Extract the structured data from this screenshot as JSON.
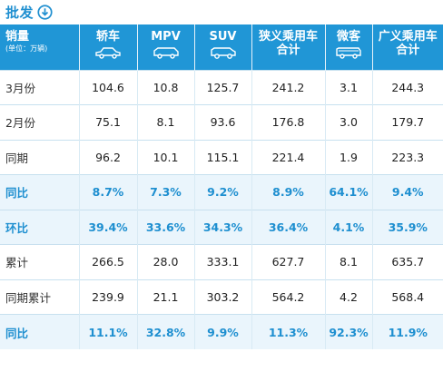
{
  "header": {
    "title": "批发"
  },
  "table": {
    "columns": [
      {
        "label": "销量",
        "unit": "(单位：万辆)"
      },
      {
        "label": "轿车",
        "icon": "sedan-icon"
      },
      {
        "label": "MPV",
        "icon": "mpv-icon"
      },
      {
        "label": "SUV",
        "icon": "suv-icon"
      },
      {
        "label": "狭义乘用车",
        "label2": "合计"
      },
      {
        "label": "微客",
        "icon": "minivan-icon"
      },
      {
        "label": "广义乘用车",
        "label2": "合计"
      }
    ],
    "rows": [
      {
        "label": "3月份",
        "values": [
          "104.6",
          "10.8",
          "125.7",
          "241.2",
          "3.1",
          "244.3"
        ]
      },
      {
        "label": "2月份",
        "values": [
          "75.1",
          "8.1",
          "93.6",
          "176.8",
          "3.0",
          "179.7"
        ]
      },
      {
        "label": "同期",
        "values": [
          "96.2",
          "10.1",
          "115.1",
          "221.4",
          "1.9",
          "223.3"
        ]
      },
      {
        "label": "同比",
        "values": [
          "8.7%",
          "7.3%",
          "9.2%",
          "8.9%",
          "64.1%",
          "9.4%"
        ]
      },
      {
        "label": "环比",
        "values": [
          "39.4%",
          "33.6%",
          "34.3%",
          "36.4%",
          "4.1%",
          "35.9%"
        ]
      },
      {
        "label": "累计",
        "values": [
          "266.5",
          "28.0",
          "333.1",
          "627.7",
          "8.1",
          "635.7"
        ]
      },
      {
        "label": "同期累计",
        "values": [
          "239.9",
          "21.1",
          "303.2",
          "564.2",
          "4.2",
          "568.4"
        ]
      },
      {
        "label": "同比",
        "values": [
          "11.1%",
          "32.8%",
          "9.9%",
          "11.3%",
          "92.3%",
          "11.9%"
        ]
      }
    ]
  },
  "colors": {
    "accent": "#2096d6",
    "highlight_text": "#1e8fd0",
    "highlight_bg": "#eaf5fc"
  }
}
